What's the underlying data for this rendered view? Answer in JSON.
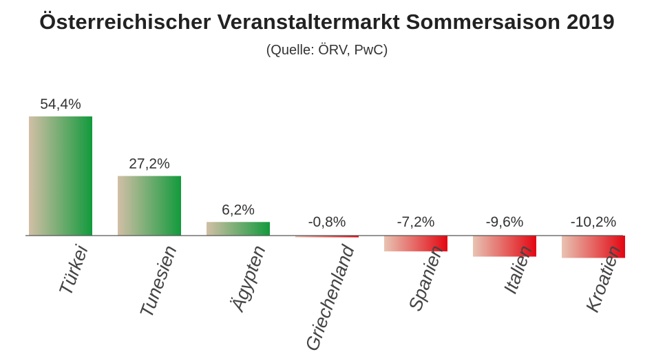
{
  "chart_data": {
    "type": "bar",
    "title": "Österreichischer Veranstaltermarkt Sommersaison 2019",
    "subtitle": "(Quelle: ÖRV, PwC)",
    "categories": [
      "Türkei",
      "Tunesien",
      "Ägypten",
      "Griechenland",
      "Spanien",
      "Italien",
      "Kroatien"
    ],
    "values": [
      54.4,
      27.2,
      6.2,
      -0.8,
      -7.2,
      -9.6,
      -10.2
    ],
    "value_labels": [
      "54,4%",
      "27,2%",
      "6,2%",
      "-0,8%",
      "-7,2%",
      "-9,6%",
      "-10,2%"
    ],
    "ylim": [
      -10.2,
      54.4
    ],
    "grid": false,
    "legend": "none",
    "colors": {
      "positive_start": "#d2bfa6",
      "positive_end": "#129a3c",
      "negative_start": "#e8c3b3",
      "negative_end": "#e30611",
      "axis": "#555555"
    }
  }
}
